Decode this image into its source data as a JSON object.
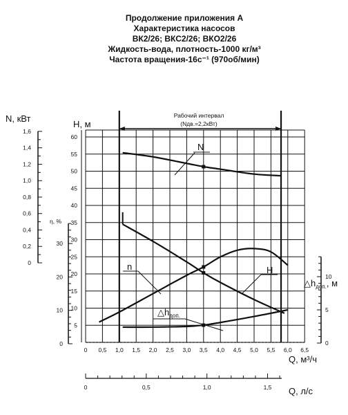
{
  "header": {
    "lines": [
      "Продолжение приложения А",
      "Характеристика насосов",
      "ВК2/26; ВКС2/26; ВКО2/26",
      "Жидкость-вода, плотность-1000 кг/м³",
      "Частота вращения-16с⁻¹ (970об/мин)"
    ]
  },
  "labels": {
    "n_axis": "N, кВт",
    "h_axis": "Н, м",
    "eta_axis": "η, %",
    "dh_axis": "△h",
    "dh_sub": "доп.",
    "dh_unit": ", м",
    "q_m3h": "Q, м³/ч",
    "q_ls": "Q, л/с",
    "interval_title": "Рабочий интервал",
    "interval_sub": "(Nдв.=2,2кВт)",
    "curve_N": "N",
    "curve_n": "n",
    "curve_H": "H",
    "curve_dh": "△h",
    "curve_dh_sub": "доп."
  },
  "chart_data": {
    "type": "line",
    "x_label": "Q, м³/ч",
    "x_ticks": [
      "0",
      "0,5",
      "1,0",
      "1,5",
      "2,0",
      "2,5",
      "3,0",
      "3,5",
      "4,0",
      "4,5",
      "5,0",
      "5,5",
      "6,0",
      "6,5"
    ],
    "x2_label": "Q, л/с",
    "x2_ticks": [
      "0",
      "0,5",
      "1,0",
      "1,5"
    ],
    "h_ticks": [
      "5",
      "10",
      "15",
      "20",
      "25",
      "30",
      "35",
      "40",
      "45",
      "50",
      "55",
      "60"
    ],
    "n_ticks": [
      "0",
      "0,2",
      "0,4",
      "0,6",
      "0,8",
      "1,0",
      "1,2",
      "1,4",
      "1,6"
    ],
    "eta_ticks": [
      "0",
      "10",
      "20",
      "30"
    ],
    "dh_ticks": [
      "0",
      "5",
      "10"
    ],
    "working_interval": [
      1.0,
      5.8
    ],
    "series": [
      {
        "name": "N",
        "axis": "N, кВт",
        "x": [
          1.1,
          2.0,
          3.0,
          3.5,
          4.0,
          5.0,
          5.8
        ],
        "y": [
          1.34,
          1.29,
          1.21,
          1.17,
          1.14,
          1.08,
          1.06
        ]
      },
      {
        "name": "H",
        "axis": "Н, м",
        "x": [
          1.1,
          2.0,
          3.0,
          3.5,
          4.0,
          5.0,
          5.9
        ],
        "y": [
          34.5,
          29.5,
          23.5,
          20.3,
          17.5,
          12.5,
          8.5
        ]
      },
      {
        "name": "n",
        "axis": "η, %",
        "x": [
          0.4,
          1.0,
          2.0,
          3.0,
          3.5,
          4.0,
          4.5,
          5.0,
          5.5,
          6.0
        ],
        "y": [
          6.5,
          9.5,
          15.0,
          20.5,
          23.0,
          26.0,
          28.0,
          28.5,
          27.5,
          23.5
        ]
      },
      {
        "name": "△hдоп.",
        "axis": "△hдоп., м",
        "x": [
          1.1,
          2.0,
          3.0,
          3.5,
          4.0,
          5.0,
          6.0
        ],
        "y": [
          2.4,
          2.4,
          2.5,
          2.7,
          3.1,
          4.0,
          5.0
        ]
      }
    ]
  }
}
